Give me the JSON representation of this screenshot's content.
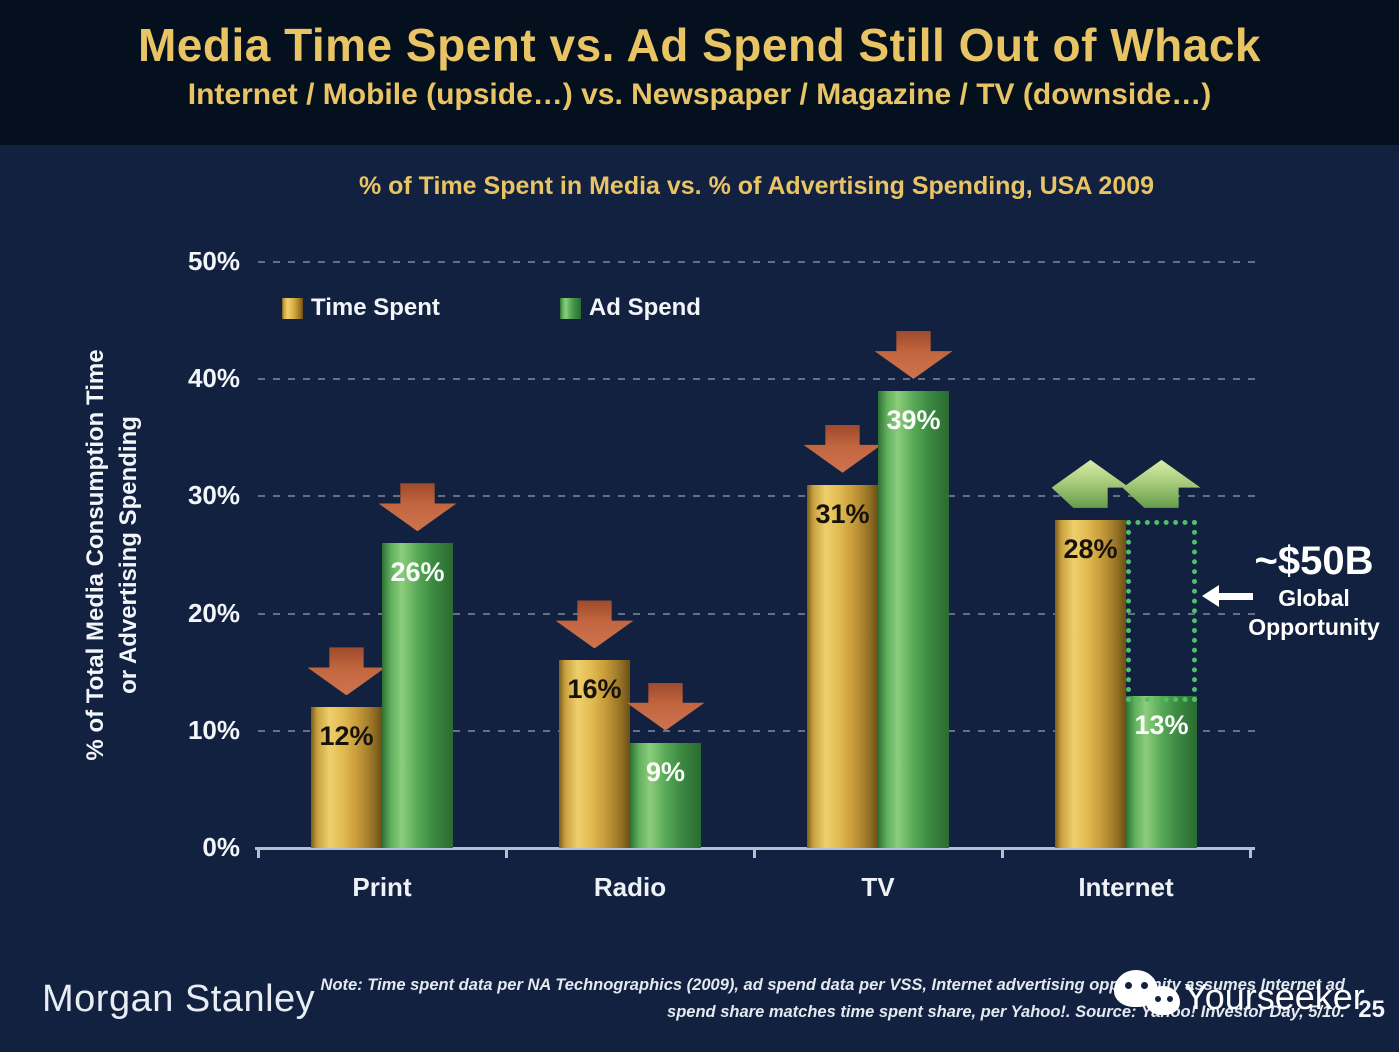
{
  "header": {
    "title": "Media Time Spent vs. Ad Spend Still Out of Whack",
    "subtitle": "Internet / Mobile (upside…) vs. Newspaper / Magazine / TV (downside…)"
  },
  "chart_data": {
    "type": "bar",
    "title": "% of Time Spent in Media vs. % of Advertising Spending, USA 2009",
    "categories": [
      "Print",
      "Radio",
      "TV",
      "Internet"
    ],
    "series": [
      {
        "name": "Time Spent",
        "color_key": "gold",
        "values": [
          12,
          16,
          31,
          28
        ],
        "trends": [
          "down",
          "down",
          "down",
          "up"
        ]
      },
      {
        "name": "Ad Spend",
        "color_key": "green",
        "values": [
          26,
          9,
          39,
          13
        ],
        "trends": [
          "down",
          "down",
          "down",
          "up"
        ]
      }
    ],
    "value_suffix": "%",
    "ylabel_line1": "% of Total Media Consumption Time",
    "ylabel_line2": "or Advertising Spending",
    "ylim": [
      0,
      50
    ],
    "ytick_step": 10,
    "ytick_suffix": "%",
    "grid": "dashed horizontal lines at 10% intervals",
    "legend_position": "top-left inside plot",
    "opportunity_box": {
      "category_index": 3,
      "series_index": 1,
      "from_value": 13,
      "to_value": 28
    },
    "annotation": {
      "value": "~$50B",
      "label_line1": "Global",
      "label_line2": "Opportunity"
    }
  },
  "colors": {
    "accent_gold_text": "#e9c464",
    "time_spent_bar": "#e2bb52",
    "ad_spend_bar": "#58a957",
    "down_arrow": "#c2663f",
    "up_arrow": "#a9cd7b",
    "opportunity_box_border": "#4ec06a",
    "background": "#122140",
    "header_background": "#05101f"
  },
  "footer": {
    "logo": "Morgan Stanley",
    "note_line1": "Note: Time spent data per NA Technographics (2009), ad spend data per VSS, Internet advertising opportunity assumes Internet ad",
    "note_line2": "spend share matches time spent share, per Yahoo!. Source: Yahoo! Investor Day, 5/10.",
    "watermark": "Yourseeker",
    "page_number": "25"
  }
}
